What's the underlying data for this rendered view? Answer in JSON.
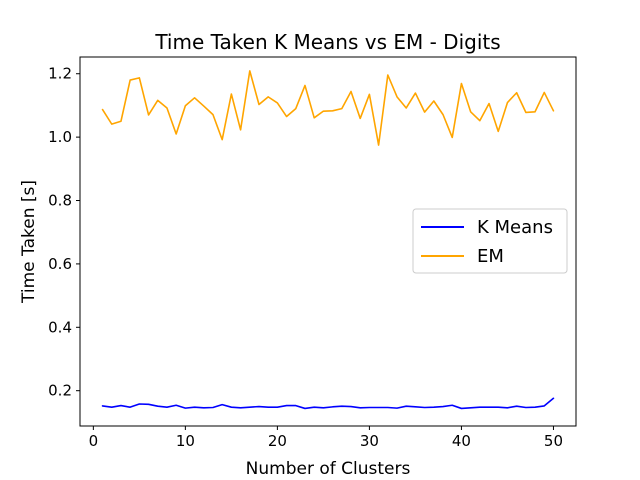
{
  "chart_data": {
    "type": "line",
    "title": "Time Taken K Means vs EM - Digits",
    "xlabel": "Number of Clusters",
    "ylabel": "Time Taken [s]",
    "xlim": [
      -1.45,
      52.45
    ],
    "ylim": [
      0.0886,
      1.2528
    ],
    "xticks": [
      0,
      10,
      20,
      30,
      40,
      50
    ],
    "yticks": [
      0.2,
      0.4,
      0.6,
      0.8,
      1.0,
      1.2
    ],
    "ytick_labels": [
      "0.2",
      "0.4",
      "0.6",
      "0.8",
      "1.0",
      "1.2"
    ],
    "grid": false,
    "legend_position": "center-right",
    "x": [
      1,
      2,
      3,
      4,
      5,
      6,
      7,
      8,
      9,
      10,
      11,
      12,
      13,
      14,
      15,
      16,
      17,
      18,
      19,
      20,
      21,
      22,
      23,
      24,
      25,
      26,
      27,
      28,
      29,
      30,
      31,
      32,
      33,
      34,
      35,
      36,
      37,
      38,
      39,
      40,
      41,
      42,
      43,
      44,
      45,
      46,
      47,
      48,
      49,
      50
    ],
    "series": [
      {
        "name": "K Means",
        "color": "#0000ff",
        "values": [
          0.152,
          0.148,
          0.153,
          0.148,
          0.158,
          0.157,
          0.151,
          0.148,
          0.154,
          0.145,
          0.148,
          0.146,
          0.147,
          0.156,
          0.148,
          0.146,
          0.148,
          0.15,
          0.148,
          0.148,
          0.153,
          0.153,
          0.144,
          0.148,
          0.146,
          0.149,
          0.151,
          0.15,
          0.146,
          0.147,
          0.147,
          0.147,
          0.145,
          0.151,
          0.149,
          0.147,
          0.148,
          0.15,
          0.154,
          0.144,
          0.146,
          0.148,
          0.148,
          0.148,
          0.146,
          0.151,
          0.147,
          0.148,
          0.152,
          0.176
        ]
      },
      {
        "name": "EM",
        "color": "#ffa500",
        "values": [
          1.087,
          1.041,
          1.05,
          1.18,
          1.187,
          1.07,
          1.116,
          1.092,
          1.01,
          1.099,
          1.124,
          1.098,
          1.071,
          0.992,
          1.136,
          1.023,
          1.209,
          1.103,
          1.127,
          1.108,
          1.065,
          1.09,
          1.163,
          1.061,
          1.082,
          1.083,
          1.09,
          1.144,
          1.059,
          1.135,
          0.975,
          1.196,
          1.127,
          1.092,
          1.139,
          1.079,
          1.114,
          1.071,
          0.999,
          1.169,
          1.08,
          1.052,
          1.106,
          1.018,
          1.109,
          1.14,
          1.078,
          1.08,
          1.141,
          1.083
        ]
      }
    ]
  }
}
